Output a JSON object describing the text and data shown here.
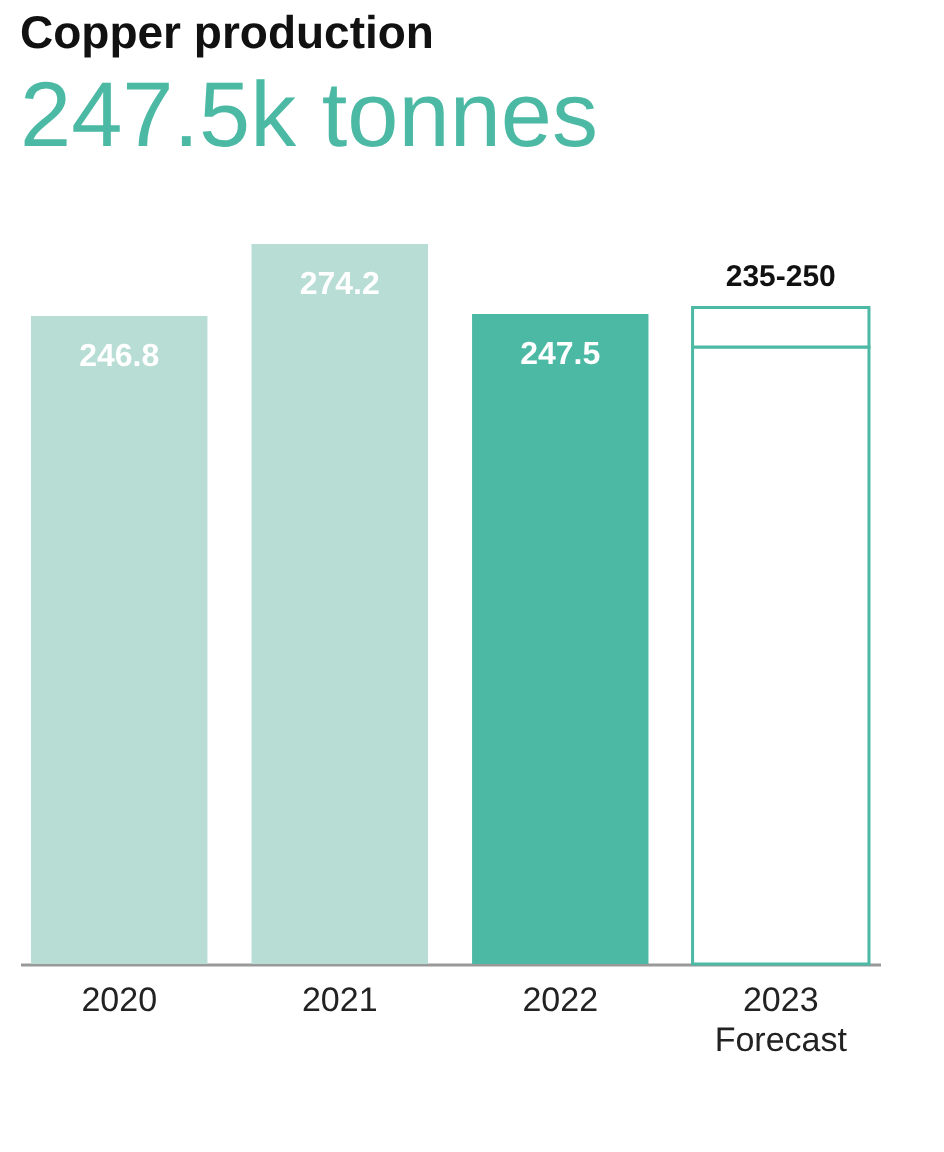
{
  "chart_data": {
    "type": "bar",
    "title": "Copper production",
    "subtitle": "247.5k tonnes",
    "categories": [
      "2020",
      "2021",
      "2022",
      "2023\nForecast"
    ],
    "stacked": true,
    "grid": false,
    "series": [
      {
        "color": "#4cb9a5",
        "colors": [
          "#b7ddd5",
          "#b7ddd5",
          "#4cb9a5",
          "#ffffff"
        ],
        "values": [
          246.8,
          274.2,
          247.5,
          235
        ],
        "value_labels": [
          "246.8",
          "274.2",
          "247.5",
          null
        ]
      },
      {
        "color": "#4cb9a5",
        "colors": [
          null,
          null,
          null,
          "#ffffff"
        ],
        "values": [
          null,
          null,
          null,
          15
        ],
        "value_labels": [
          null,
          null,
          null,
          "235-250"
        ]
      }
    ]
  }
}
